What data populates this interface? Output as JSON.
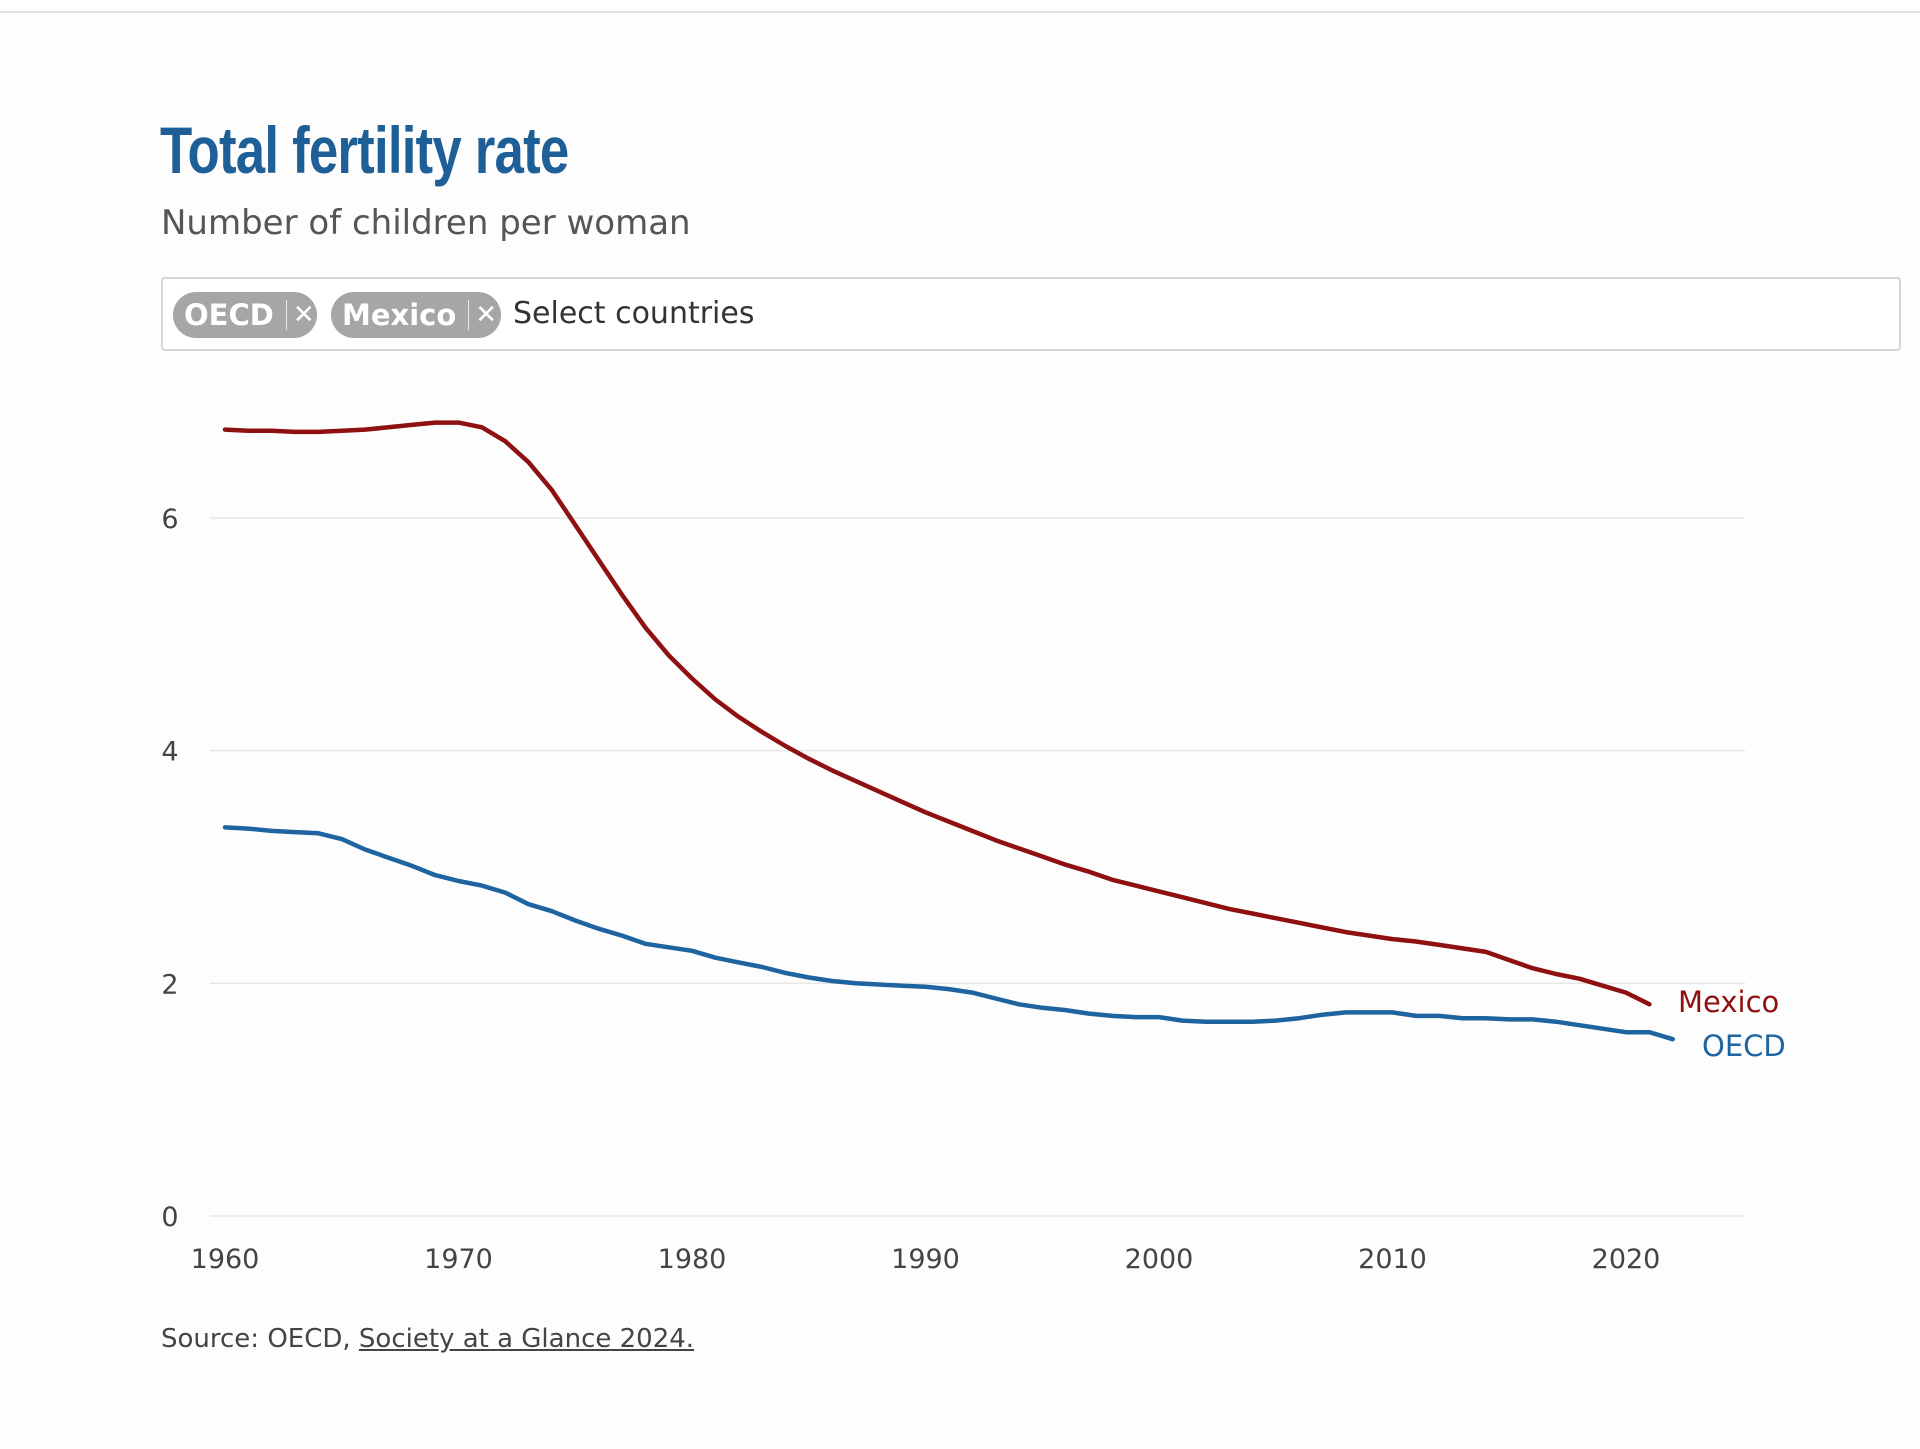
{
  "header": {
    "title": "Total fertility rate",
    "subtitle": "Number of children per woman"
  },
  "selector": {
    "chips": [
      {
        "label": "OECD",
        "remove_icon": "close-icon"
      },
      {
        "label": "Mexico",
        "remove_icon": "close-icon"
      }
    ],
    "placeholder": "Select countries"
  },
  "colors": {
    "title": "#1d5f96",
    "mexico": "#8f1010",
    "oecd": "#1d64a0",
    "gridline": "#e6e6e6"
  },
  "footer": {
    "source_prefix": "Source: OECD, ",
    "source_link": "Society at a Glance 2024."
  },
  "chart_data": {
    "type": "line",
    "title": "Total fertility rate",
    "subtitle": "Number of children per woman",
    "xlabel": "",
    "ylabel": "",
    "xlim": [
      1960,
      2022
    ],
    "ylim": [
      0,
      7
    ],
    "x_ticks": [
      1960,
      1970,
      1980,
      1990,
      2000,
      2010,
      2020
    ],
    "y_ticks": [
      0,
      2,
      4,
      6
    ],
    "grid": "horizontal",
    "x": [
      1960,
      1961,
      1962,
      1963,
      1964,
      1965,
      1966,
      1967,
      1968,
      1969,
      1970,
      1971,
      1972,
      1973,
      1974,
      1975,
      1976,
      1977,
      1978,
      1979,
      1980,
      1981,
      1982,
      1983,
      1984,
      1985,
      1986,
      1987,
      1988,
      1989,
      1990,
      1991,
      1992,
      1993,
      1994,
      1995,
      1996,
      1997,
      1998,
      1999,
      2000,
      2001,
      2002,
      2003,
      2004,
      2005,
      2006,
      2007,
      2008,
      2009,
      2010,
      2011,
      2012,
      2013,
      2014,
      2015,
      2016,
      2017,
      2018,
      2019,
      2020,
      2021,
      2022
    ],
    "series": [
      {
        "name": "Mexico",
        "label": "Mexico",
        "values": [
          6.76,
          6.75,
          6.75,
          6.74,
          6.74,
          6.75,
          6.76,
          6.78,
          6.8,
          6.82,
          6.82,
          6.78,
          6.66,
          6.48,
          6.24,
          5.94,
          5.64,
          5.34,
          5.06,
          4.82,
          4.62,
          4.44,
          4.29,
          4.16,
          4.04,
          3.93,
          3.83,
          3.74,
          3.65,
          3.56,
          3.47,
          3.39,
          3.31,
          3.23,
          3.16,
          3.09,
          3.02,
          2.96,
          2.89,
          2.84,
          2.79,
          2.74,
          2.69,
          2.64,
          2.6,
          2.56,
          2.52,
          2.48,
          2.44,
          2.41,
          2.38,
          2.36,
          2.33,
          2.3,
          2.27,
          2.2,
          2.13,
          2.08,
          2.04,
          1.98,
          1.92,
          1.82,
          null
        ]
      },
      {
        "name": "OECD",
        "label": "OECD",
        "values": [
          3.34,
          3.33,
          3.31,
          3.3,
          3.29,
          3.24,
          3.15,
          3.08,
          3.01,
          2.93,
          2.88,
          2.84,
          2.78,
          2.68,
          2.62,
          2.54,
          2.47,
          2.41,
          2.34,
          2.31,
          2.28,
          2.22,
          2.18,
          2.14,
          2.09,
          2.05,
          2.02,
          2.0,
          1.99,
          1.98,
          1.97,
          1.95,
          1.92,
          1.87,
          1.82,
          1.79,
          1.77,
          1.74,
          1.72,
          1.71,
          1.71,
          1.68,
          1.67,
          1.67,
          1.67,
          1.68,
          1.7,
          1.73,
          1.75,
          1.75,
          1.75,
          1.72,
          1.72,
          1.7,
          1.7,
          1.69,
          1.69,
          1.67,
          1.64,
          1.61,
          1.58,
          1.58,
          1.52
        ]
      }
    ]
  }
}
